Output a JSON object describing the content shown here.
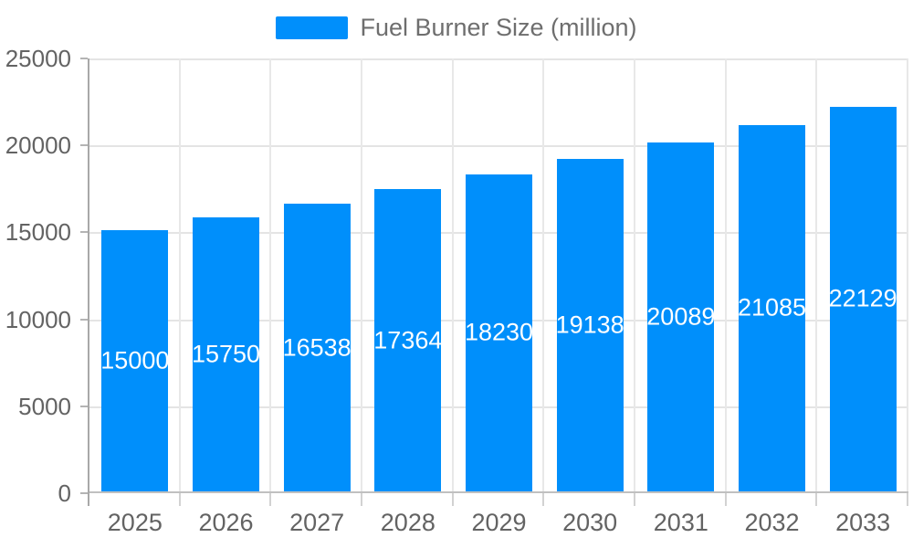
{
  "legend": {
    "label": "Fuel Burner Size (million)",
    "swatch_color": "#008FFB"
  },
  "colors": {
    "bar": "#008FFB",
    "bar_label_text": "#ffffff",
    "axis_text": "#636363",
    "legend_text": "#6e6e6e",
    "gridline": "#e4e4e4",
    "y_axis_line": "#a8a8a8",
    "x_axis_line": "#c0c0c0"
  },
  "chart_data": {
    "type": "bar",
    "title": "",
    "xlabel": "",
    "ylabel": "",
    "categories": [
      "2025",
      "2026",
      "2027",
      "2028",
      "2029",
      "2030",
      "2031",
      "2032",
      "2033"
    ],
    "series": [
      {
        "name": "Fuel Burner Size (million)",
        "values": [
          15000,
          15750,
          16538,
          17364,
          18230,
          19138,
          20089,
          21085,
          22129
        ]
      }
    ],
    "bar_labels": [
      "15000",
      "15750",
      "16538",
      "17364",
      "18230",
      "19138",
      "20089",
      "21085",
      "22129"
    ],
    "ylim": [
      0,
      25000
    ],
    "yticks": [
      0,
      5000,
      10000,
      15000,
      20000,
      25000
    ],
    "grid": true,
    "legend_position": "top",
    "bar_label_position": "center"
  }
}
